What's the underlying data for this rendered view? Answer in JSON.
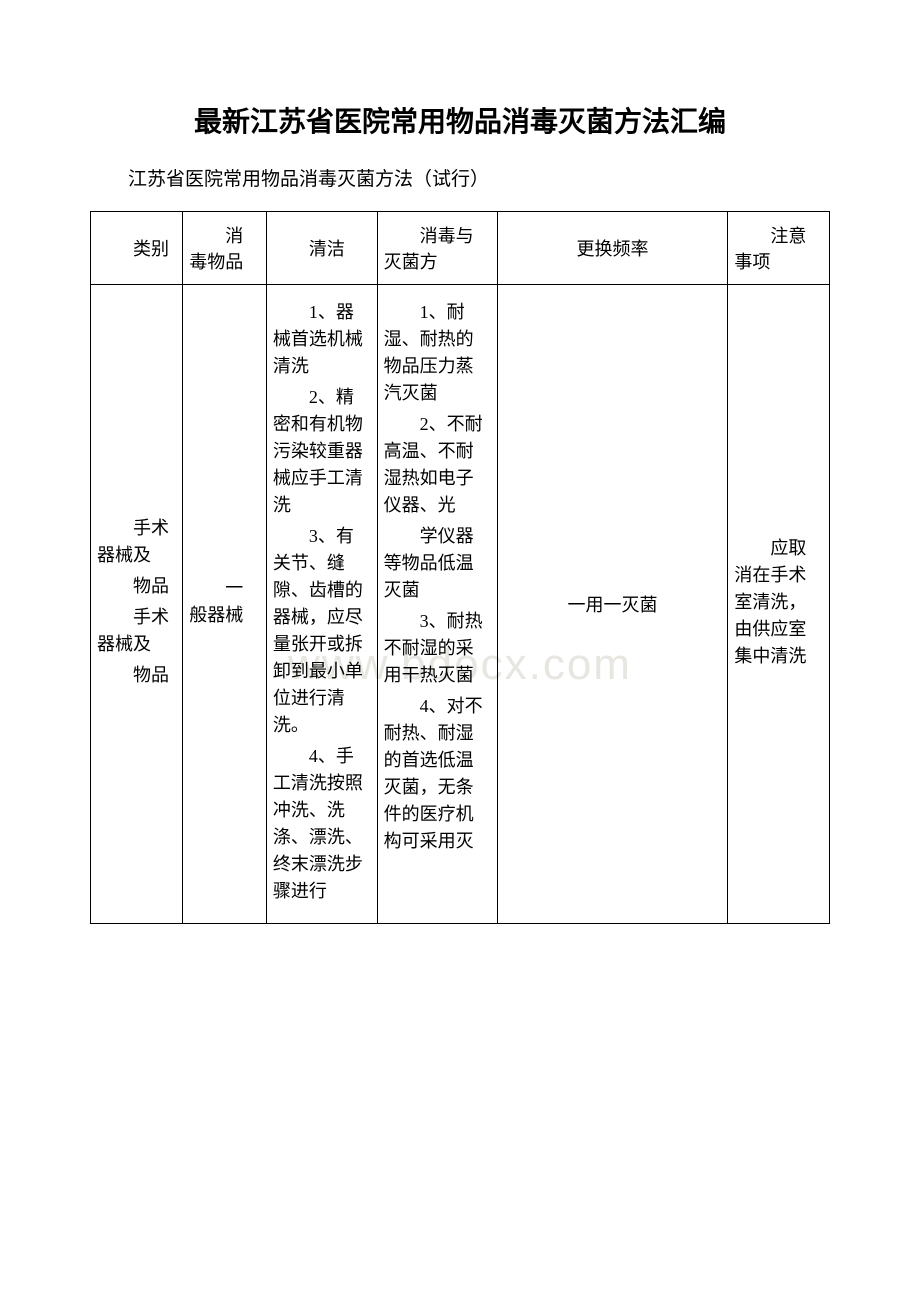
{
  "title": "最新江苏省医院常用物品消毒灭菌方法汇编",
  "subtitle": "江苏省医院常用物品消毒灭菌方法（试行）",
  "watermark": "www.bdocx.com",
  "table": {
    "headers": {
      "category": "类别",
      "item": "消毒物品",
      "clean": "清洁",
      "method": "消毒与灭菌方",
      "freq": "更换频率",
      "note": "注意事项"
    },
    "row": {
      "category_lines": [
        "手术器械及",
        "物品",
        "手术器械及",
        "物品"
      ],
      "item": "一般器械",
      "clean_paras": [
        "1、器械首选机械清洗",
        "2、精密和有机物污染较重器械应手工清洗",
        "3、有关节、缝隙、齿槽的器械，应尽量张开或拆卸到最小单位进行清洗。",
        "4、手工清洗按照冲洗、洗涤、漂洗、终末漂洗步骤进行"
      ],
      "method_paras": [
        "1、耐湿、耐热的物品压力蒸汽灭菌",
        "2、不耐高温、不耐湿热如电子仪器、光",
        "学仪器等物品低温灭菌",
        "3、耐热不耐湿的采用干热灭菌",
        "4、对不耐热、耐湿的首选低温灭菌，无条件的医疗机构可采用灭"
      ],
      "method_sub_indent": "学仪器等物品低温灭菌",
      "freq": "一用一灭菌",
      "note": "应取消在手术室清洗，由供应室集中清洗"
    }
  },
  "style": {
    "title_fontsize": 28,
    "subtitle_fontsize": 19,
    "body_fontsize": 18,
    "watermark_color": "#e8e6e0",
    "text_color": "#000000",
    "border_color": "#000000",
    "background_color": "#ffffff"
  }
}
